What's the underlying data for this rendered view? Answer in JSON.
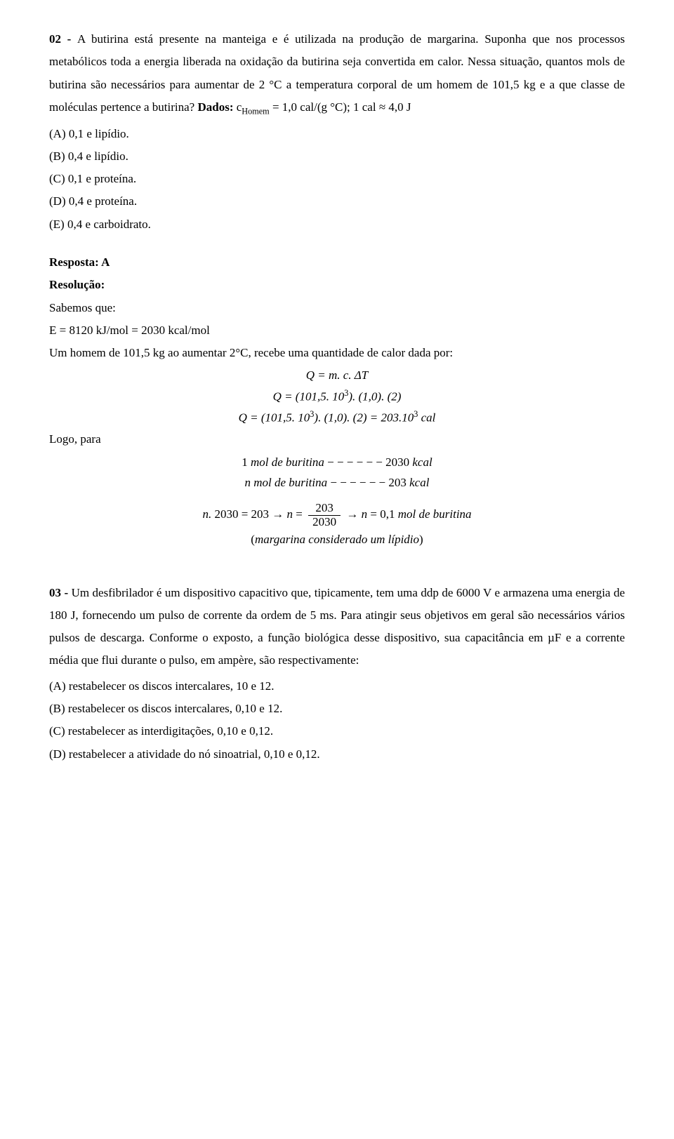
{
  "q02": {
    "number": "02 - ",
    "statement_1": "A butirina está presente na manteiga e é utilizada na produção de margarina. Suponha que nos processos metabólicos toda a energia liberada na oxidação da butirina seja convertida em calor. Nessa situação, quantos mols de butirina são necessários para aumentar de 2 °C a temperatura corporal de um homem de 101,5 kg e a que classe de moléculas pertence a butirina? ",
    "dados_label": "Dados:",
    "dados_value": " c",
    "dados_sub": "Homem",
    "dados_rest": " = 1,0 cal/(g °C); 1 cal ≈ 4,0 J",
    "options": {
      "A": "(A) 0,1 e lipídio.",
      "B": "(B) 0,4 e lipídio.",
      "C": "(C) 0,1 e proteína.",
      "D": "(D) 0,4 e proteína.",
      "E": "(E) 0,4 e carboidrato."
    },
    "answer_label": "Resposta: A",
    "resolution_label": "Resolução:",
    "res_line1": "Sabemos que:",
    "res_line2": "E = 8120 kJ/mol = 2030 kcal/mol",
    "res_line3": "Um homem de 101,5 kg ao aumentar 2°C, recebe uma quantidade de calor dada por:",
    "eq1": "Q = m. c. ΔT",
    "eq2_a": "Q = (101,5. 10",
    "eq2_sup": "3",
    "eq2_b": "). (1,0). (2)",
    "eq3_a": "Q = (101,5. 10",
    "eq3_sup": "3",
    "eq3_b": "). (1,0). (2) = 203.10",
    "eq3_sup2": "3",
    "eq3_c": " cal",
    "logo": "Logo, para",
    "eq4": "1 mol de buritina − − − − − − 2030 kcal",
    "eq5": "n mol de buritina − − − − − − 203 kcal",
    "eq6_a": "n. 2030 = 203 → n = ",
    "eq6_num": "203",
    "eq6_den": "2030",
    "eq6_b": " → n = 0,1 mol de buritina",
    "eq7": "(margarina considerado um lípidio)"
  },
  "q03": {
    "number": "03 - ",
    "statement": "Um desfibrilador é um dispositivo capacitivo que, tipicamente, tem uma ddp de 6000 V e armazena uma energia de 180 J, fornecendo um pulso de corrente da ordem de 5 ms. Para atingir seus objetivos em geral são necessários vários pulsos de descarga. Conforme o exposto, a função biológica desse dispositivo, sua capacitância em µF e a corrente média que flui durante o pulso, em ampère, são respectivamente:",
    "options": {
      "A": "(A) restabelecer os discos intercalares, 10 e 12.",
      "B": "(B) restabelecer os discos intercalares, 0,10 e 12.",
      "C": "(C) restabelecer as interdigitações, 0,10 e 0,12.",
      "D": "(D) restabelecer a atividade do nó sinoatrial, 0,10 e 0,12."
    }
  }
}
